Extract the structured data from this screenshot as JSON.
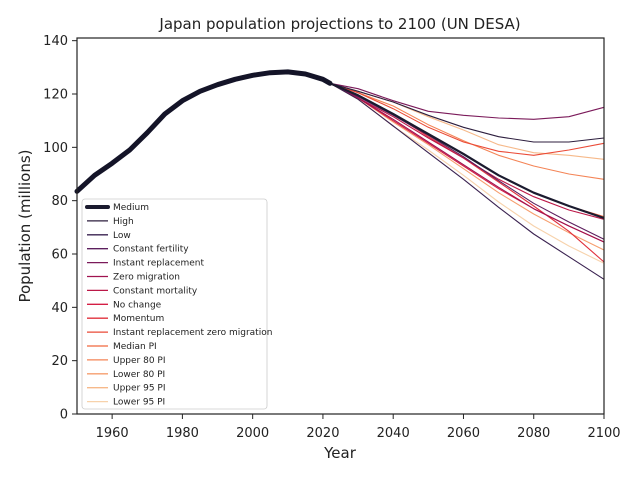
{
  "chart_data": {
    "type": "line",
    "title": "Japan population projections to 2100 (UN DESA)",
    "xlabel": "Year",
    "ylabel": "Population (millions)",
    "xlim": [
      1950,
      2100
    ],
    "ylim": [
      0,
      141
    ],
    "xticks": [
      1960,
      1980,
      2000,
      2020,
      2040,
      2060,
      2080,
      2100
    ],
    "yticks": [
      0,
      20,
      40,
      60,
      80,
      100,
      120,
      140
    ],
    "grid": false,
    "legend_position": "lower-left",
    "historical": {
      "name": "Medium",
      "x": [
        1950,
        1955,
        1960,
        1965,
        1970,
        1975,
        1980,
        1985,
        1990,
        1995,
        2000,
        2005,
        2010,
        2015,
        2020,
        2022
      ],
      "y": [
        83.5,
        89.5,
        94.0,
        99.0,
        105.5,
        112.5,
        117.5,
        121.0,
        123.5,
        125.5,
        127.0,
        128.0,
        128.3,
        127.5,
        125.5,
        124.0
      ]
    },
    "projection_x": [
      2022,
      2030,
      2040,
      2050,
      2060,
      2070,
      2080,
      2090,
      2100
    ],
    "series": [
      {
        "name": "Medium",
        "color": "#1b1b2f",
        "values": [
          124,
          119.5,
          112.5,
          105,
          97.5,
          89.5,
          83,
          78,
          73.5
        ]
      },
      {
        "name": "High",
        "color": "#2d1e3e",
        "values": [
          124,
          121,
          117,
          112,
          107.5,
          104,
          102,
          102,
          103.5
        ]
      },
      {
        "name": "Low",
        "color": "#3a2250",
        "values": [
          124,
          118,
          108,
          98,
          88,
          77.5,
          67.5,
          59,
          50.5
        ]
      },
      {
        "name": "Constant fertility",
        "color": "#5c1f5e",
        "values": [
          124,
          119,
          112,
          104.5,
          96.5,
          87.5,
          79,
          72,
          65.5
        ]
      },
      {
        "name": "Instant replacement",
        "color": "#7b1a5a",
        "values": [
          124,
          122,
          117.5,
          113.5,
          112,
          111,
          110.5,
          111.5,
          115
        ]
      },
      {
        "name": "Zero migration",
        "color": "#a0134f",
        "values": [
          124,
          118.5,
          110.5,
          102,
          93.5,
          85,
          77,
          70.5,
          64.5
        ]
      },
      {
        "name": "Constant mortality",
        "color": "#bb1848",
        "values": [
          124,
          118.5,
          111.5,
          103.5,
          96,
          88,
          81.5,
          76.5,
          73
        ]
      },
      {
        "name": "No change",
        "color": "#d41e44",
        "values": [
          124,
          118.5,
          110,
          101.5,
          93,
          84.5,
          77,
          70.5,
          64.5
        ]
      },
      {
        "name": "Momentum",
        "color": "#e0303c",
        "values": [
          124,
          119.5,
          112.5,
          104,
          96,
          87,
          78,
          68.5,
          57
        ]
      },
      {
        "name": "Instant replacement zero migration",
        "color": "#ea4a37",
        "values": [
          124,
          120.5,
          114.5,
          107.5,
          102,
          98.5,
          97,
          99,
          101.5
        ]
      },
      {
        "name": "Median PI",
        "color": "#f1683f",
        "values": [
          124,
          119.5,
          112.5,
          105,
          97.5,
          89.5,
          83,
          78,
          74
        ]
      },
      {
        "name": "Upper 80 PI",
        "color": "#f48456",
        "values": [
          124,
          120.5,
          115.5,
          108.5,
          102.5,
          97,
          93,
          90,
          88
        ]
      },
      {
        "name": "Lower 80 PI",
        "color": "#f69e6e",
        "values": [
          124,
          118.5,
          109.5,
          101,
          92,
          83,
          75,
          68,
          61.5
        ]
      },
      {
        "name": "Upper 95 PI",
        "color": "#f6b98a",
        "values": [
          124,
          121,
          117,
          111.5,
          106.5,
          101,
          98,
          97,
          95.5
        ]
      },
      {
        "name": "Lower 95 PI",
        "color": "#f7d2ab",
        "values": [
          124,
          118,
          108,
          99,
          89.5,
          79.5,
          70.5,
          63,
          56.5
        ]
      }
    ]
  }
}
